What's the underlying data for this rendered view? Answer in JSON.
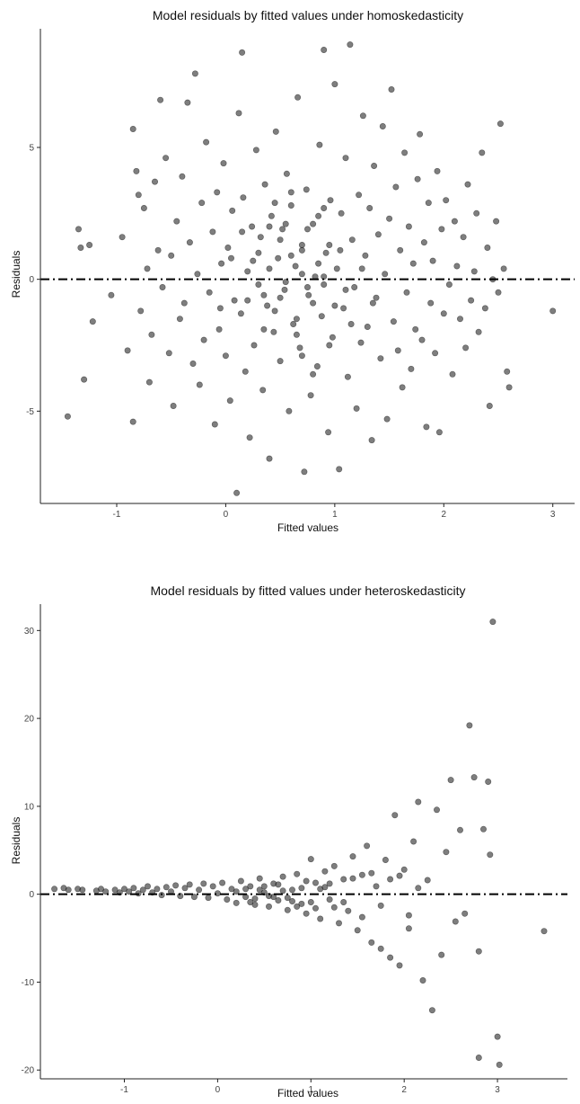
{
  "chart_data": [
    {
      "type": "scatter",
      "title": "Model residuals by fitted values under homoskedasticity",
      "xlabel": "Fitted values",
      "ylabel": "Residuals",
      "xlim": [
        -1.7,
        3.2
      ],
      "ylim": [
        -8.5,
        9.5
      ],
      "xticks": [
        -1,
        0,
        1,
        2,
        3
      ],
      "yticks": [
        -5,
        0,
        5
      ],
      "grid": false,
      "reference_line": {
        "y": 0,
        "style": "dot-dash"
      },
      "points": [
        [
          -1.45,
          -5.2
        ],
        [
          -1.35,
          1.9
        ],
        [
          -1.33,
          1.2
        ],
        [
          -1.3,
          -3.8
        ],
        [
          -1.22,
          -1.6
        ],
        [
          -1.25,
          1.3
        ],
        [
          -1.05,
          -0.6
        ],
        [
          -0.95,
          1.6
        ],
        [
          -0.9,
          -2.7
        ],
        [
          -0.85,
          -5.4
        ],
        [
          -0.85,
          5.7
        ],
        [
          -0.82,
          4.1
        ],
        [
          -0.8,
          3.2
        ],
        [
          -0.78,
          -1.2
        ],
        [
          -0.75,
          2.7
        ],
        [
          -0.72,
          0.4
        ],
        [
          -0.7,
          -3.9
        ],
        [
          -0.68,
          -2.1
        ],
        [
          -0.65,
          3.7
        ],
        [
          -0.62,
          1.1
        ],
        [
          -0.6,
          6.8
        ],
        [
          -0.58,
          -0.3
        ],
        [
          -0.55,
          4.6
        ],
        [
          -0.52,
          -2.8
        ],
        [
          -0.5,
          0.9
        ],
        [
          -0.48,
          -4.8
        ],
        [
          -0.45,
          2.2
        ],
        [
          -0.42,
          -1.5
        ],
        [
          -0.4,
          3.9
        ],
        [
          -0.38,
          -0.9
        ],
        [
          -0.35,
          6.7
        ],
        [
          -0.33,
          1.4
        ],
        [
          -0.3,
          -3.2
        ],
        [
          -0.28,
          7.8
        ],
        [
          -0.26,
          0.2
        ],
        [
          -0.24,
          -4.0
        ],
        [
          -0.22,
          2.9
        ],
        [
          -0.2,
          -2.3
        ],
        [
          -0.18,
          5.2
        ],
        [
          -0.15,
          -0.5
        ],
        [
          -0.12,
          1.8
        ],
        [
          -0.1,
          -5.5
        ],
        [
          -0.08,
          3.3
        ],
        [
          -0.06,
          -1.9
        ],
        [
          -0.04,
          0.6
        ],
        [
          -0.02,
          4.4
        ],
        [
          0.0,
          -2.9
        ],
        [
          0.02,
          1.2
        ],
        [
          0.04,
          -4.6
        ],
        [
          0.06,
          2.6
        ],
        [
          0.08,
          -0.8
        ],
        [
          0.1,
          -8.1
        ],
        [
          0.12,
          6.3
        ],
        [
          0.14,
          -1.3
        ],
        [
          0.15,
          8.6
        ],
        [
          0.16,
          3.1
        ],
        [
          0.18,
          -3.5
        ],
        [
          0.2,
          0.3
        ],
        [
          0.22,
          -6.0
        ],
        [
          0.24,
          2.0
        ],
        [
          0.26,
          -2.5
        ],
        [
          0.28,
          4.9
        ],
        [
          0.3,
          -0.2
        ],
        [
          0.32,
          1.6
        ],
        [
          0.34,
          -4.2
        ],
        [
          0.36,
          3.6
        ],
        [
          0.38,
          -1.0
        ],
        [
          0.4,
          -6.8
        ],
        [
          0.42,
          2.4
        ],
        [
          0.44,
          -2.0
        ],
        [
          0.46,
          5.6
        ],
        [
          0.48,
          0.8
        ],
        [
          0.5,
          -3.1
        ],
        [
          0.52,
          1.9
        ],
        [
          0.54,
          -0.4
        ],
        [
          0.56,
          4.0
        ],
        [
          0.58,
          -5.0
        ],
        [
          0.6,
          2.8
        ],
        [
          0.62,
          -1.7
        ],
        [
          0.64,
          0.5
        ],
        [
          0.66,
          6.9
        ],
        [
          0.68,
          -2.6
        ],
        [
          0.7,
          1.3
        ],
        [
          0.72,
          -7.3
        ],
        [
          0.74,
          3.4
        ],
        [
          0.76,
          -0.6
        ],
        [
          0.78,
          -4.4
        ],
        [
          0.8,
          2.1
        ],
        [
          0.82,
          0.1
        ],
        [
          0.84,
          -3.3
        ],
        [
          0.86,
          5.1
        ],
        [
          0.88,
          -1.4
        ],
        [
          0.9,
          8.7
        ],
        [
          0.92,
          1.0
        ],
        [
          0.94,
          -5.8
        ],
        [
          0.96,
          3.0
        ],
        [
          0.98,
          -2.2
        ],
        [
          1.0,
          7.4
        ],
        [
          1.02,
          0.4
        ],
        [
          1.04,
          -7.2
        ],
        [
          1.06,
          2.5
        ],
        [
          1.08,
          -1.1
        ],
        [
          1.1,
          4.6
        ],
        [
          1.12,
          -3.7
        ],
        [
          1.14,
          8.9
        ],
        [
          1.16,
          1.5
        ],
        [
          1.18,
          -0.3
        ],
        [
          1.2,
          -4.9
        ],
        [
          1.22,
          3.2
        ],
        [
          1.24,
          -2.4
        ],
        [
          1.26,
          6.2
        ],
        [
          1.28,
          0.9
        ],
        [
          1.3,
          -1.8
        ],
        [
          1.32,
          2.7
        ],
        [
          1.34,
          -6.1
        ],
        [
          1.36,
          4.3
        ],
        [
          1.38,
          -0.7
        ],
        [
          1.4,
          1.7
        ],
        [
          1.42,
          -3.0
        ],
        [
          1.44,
          5.8
        ],
        [
          1.46,
          0.2
        ],
        [
          1.48,
          -5.3
        ],
        [
          1.5,
          2.3
        ],
        [
          1.52,
          7.2
        ],
        [
          1.54,
          -1.6
        ],
        [
          1.56,
          3.5
        ],
        [
          1.58,
          -2.7
        ],
        [
          1.6,
          1.1
        ],
        [
          1.62,
          -4.1
        ],
        [
          1.64,
          4.8
        ],
        [
          1.66,
          -0.5
        ],
        [
          1.68,
          2.0
        ],
        [
          1.7,
          -3.4
        ],
        [
          1.72,
          0.6
        ],
        [
          1.74,
          -1.9
        ],
        [
          1.76,
          3.8
        ],
        [
          1.78,
          5.5
        ],
        [
          1.8,
          -2.3
        ],
        [
          1.82,
          1.4
        ],
        [
          1.84,
          -5.6
        ],
        [
          1.86,
          2.9
        ],
        [
          1.88,
          -0.9
        ],
        [
          1.9,
          0.7
        ],
        [
          1.92,
          -2.8
        ],
        [
          1.94,
          4.1
        ],
        [
          1.96,
          -5.8
        ],
        [
          1.98,
          1.9
        ],
        [
          2.0,
          -1.3
        ],
        [
          2.02,
          3.0
        ],
        [
          2.05,
          -0.2
        ],
        [
          2.08,
          -3.6
        ],
        [
          2.1,
          2.2
        ],
        [
          2.12,
          0.5
        ],
        [
          2.15,
          -1.5
        ],
        [
          2.18,
          1.6
        ],
        [
          2.2,
          -2.6
        ],
        [
          2.22,
          3.6
        ],
        [
          2.25,
          -0.8
        ],
        [
          2.28,
          0.3
        ],
        [
          2.3,
          2.5
        ],
        [
          2.32,
          -2.0
        ],
        [
          2.35,
          4.8
        ],
        [
          2.38,
          -1.1
        ],
        [
          2.4,
          1.2
        ],
        [
          2.42,
          -4.8
        ],
        [
          2.45,
          0.0
        ],
        [
          2.48,
          2.2
        ],
        [
          2.5,
          -0.5
        ],
        [
          2.52,
          5.9
        ],
        [
          2.55,
          0.4
        ],
        [
          2.58,
          -3.5
        ],
        [
          2.6,
          -4.1
        ],
        [
          3.0,
          -1.2
        ],
        [
          0.3,
          1.0
        ],
        [
          0.35,
          -0.6
        ],
        [
          0.4,
          0.4
        ],
        [
          0.45,
          -1.2
        ],
        [
          0.5,
          1.5
        ],
        [
          0.55,
          -0.1
        ],
        [
          0.6,
          0.9
        ],
        [
          0.65,
          -1.5
        ],
        [
          0.7,
          0.2
        ],
        [
          0.75,
          1.9
        ],
        [
          0.8,
          -0.9
        ],
        [
          0.85,
          0.6
        ],
        [
          0.9,
          -0.2
        ],
        [
          0.95,
          1.3
        ],
        [
          1.0,
          -1.0
        ],
        [
          0.2,
          -0.8
        ],
        [
          0.25,
          0.7
        ],
        [
          0.55,
          2.1
        ],
        [
          0.65,
          -2.1
        ],
        [
          0.75,
          -0.3
        ],
        [
          0.85,
          2.4
        ],
        [
          0.95,
          -2.5
        ],
        [
          1.05,
          1.1
        ],
        [
          1.1,
          -0.4
        ],
        [
          0.15,
          1.8
        ],
        [
          0.45,
          2.9
        ],
        [
          0.7,
          -2.9
        ],
        [
          0.9,
          2.7
        ],
        [
          1.15,
          -1.7
        ],
        [
          0.35,
          -1.9
        ],
        [
          0.05,
          0.8
        ],
        [
          -0.05,
          -1.1
        ],
        [
          1.25,
          0.4
        ],
        [
          1.35,
          -0.9
        ],
        [
          0.6,
          3.3
        ],
        [
          0.8,
          -3.6
        ],
        [
          0.5,
          -0.7
        ],
        [
          0.7,
          1.1
        ],
        [
          0.9,
          0.1
        ],
        [
          0.4,
          2.0
        ]
      ]
    },
    {
      "type": "scatter",
      "title": "Model residuals by fitted values under heteroskedasticity",
      "xlabel": "Fitted values",
      "ylabel": "Residuals",
      "xlim": [
        -1.9,
        3.75
      ],
      "ylim": [
        -21,
        33
      ],
      "xticks": [
        -1,
        0,
        1,
        2,
        3
      ],
      "yticks": [
        -20,
        -10,
        0,
        10,
        20,
        30
      ],
      "grid": false,
      "reference_line": {
        "y": 0,
        "style": "dot-dash"
      },
      "points": [
        [
          -1.75,
          0.6
        ],
        [
          -1.65,
          0.7
        ],
        [
          -1.6,
          0.5
        ],
        [
          -1.5,
          0.6
        ],
        [
          -1.45,
          0.5
        ],
        [
          -1.3,
          0.4
        ],
        [
          -1.25,
          0.6
        ],
        [
          -1.2,
          0.3
        ],
        [
          -1.1,
          0.5
        ],
        [
          -1.05,
          0.2
        ],
        [
          -1.0,
          0.6
        ],
        [
          -0.95,
          0.3
        ],
        [
          -0.9,
          0.7
        ],
        [
          -0.85,
          0.1
        ],
        [
          -0.8,
          0.5
        ],
        [
          -0.75,
          0.9
        ],
        [
          -0.7,
          0.2
        ],
        [
          -0.65,
          0.6
        ],
        [
          -0.6,
          -0.1
        ],
        [
          -0.55,
          0.8
        ],
        [
          -0.5,
          0.3
        ],
        [
          -0.45,
          1.0
        ],
        [
          -0.4,
          -0.2
        ],
        [
          -0.35,
          0.7
        ],
        [
          -0.3,
          1.1
        ],
        [
          -0.25,
          -0.3
        ],
        [
          -0.2,
          0.5
        ],
        [
          -0.15,
          1.2
        ],
        [
          -0.1,
          -0.4
        ],
        [
          -0.05,
          0.9
        ],
        [
          0.0,
          0.1
        ],
        [
          0.05,
          1.3
        ],
        [
          0.1,
          -0.6
        ],
        [
          0.15,
          0.6
        ],
        [
          0.2,
          -1.0
        ],
        [
          0.25,
          1.5
        ],
        [
          0.3,
          -0.3
        ],
        [
          0.35,
          0.9
        ],
        [
          0.4,
          -1.2
        ],
        [
          0.45,
          1.8
        ],
        [
          0.5,
          0.2
        ],
        [
          0.55,
          -1.4
        ],
        [
          0.6,
          1.2
        ],
        [
          0.65,
          -0.7
        ],
        [
          0.7,
          2.0
        ],
        [
          0.75,
          -1.8
        ],
        [
          0.8,
          0.5
        ],
        [
          0.85,
          2.3
        ],
        [
          0.9,
          -1.1
        ],
        [
          0.95,
          -2.2
        ],
        [
          1.0,
          4.0
        ],
        [
          1.05,
          1.3
        ],
        [
          1.1,
          -2.8
        ],
        [
          1.15,
          2.6
        ],
        [
          1.2,
          -0.6
        ],
        [
          1.25,
          3.2
        ],
        [
          1.3,
          -3.3
        ],
        [
          1.35,
          1.7
        ],
        [
          1.4,
          -1.9
        ],
        [
          1.45,
          4.3
        ],
        [
          1.5,
          -4.1
        ],
        [
          1.55,
          2.2
        ],
        [
          1.6,
          5.5
        ],
        [
          1.65,
          -5.5
        ],
        [
          1.7,
          0.9
        ],
        [
          1.75,
          -6.2
        ],
        [
          1.8,
          3.9
        ],
        [
          1.85,
          -7.2
        ],
        [
          1.9,
          9.0
        ],
        [
          1.95,
          -8.1
        ],
        [
          2.0,
          2.8
        ],
        [
          2.05,
          -3.9
        ],
        [
          2.1,
          6.0
        ],
        [
          2.15,
          10.5
        ],
        [
          2.2,
          -9.8
        ],
        [
          2.25,
          1.6
        ],
        [
          2.3,
          -13.2
        ],
        [
          2.35,
          9.6
        ],
        [
          2.4,
          -6.9
        ],
        [
          2.45,
          4.8
        ],
        [
          2.5,
          13.0
        ],
        [
          2.55,
          -3.1
        ],
        [
          2.6,
          7.3
        ],
        [
          2.65,
          -2.2
        ],
        [
          2.7,
          19.2
        ],
        [
          2.75,
          13.3
        ],
        [
          2.8,
          -6.5
        ],
        [
          2.85,
          7.4
        ],
        [
          2.8,
          -18.6
        ],
        [
          2.9,
          12.8
        ],
        [
          2.92,
          4.5
        ],
        [
          2.95,
          31.0
        ],
        [
          3.0,
          -16.2
        ],
        [
          3.02,
          -19.4
        ],
        [
          3.5,
          -4.2
        ],
        [
          0.3,
          0.6
        ],
        [
          0.4,
          -0.5
        ],
        [
          0.5,
          0.9
        ],
        [
          0.6,
          -0.3
        ],
        [
          0.7,
          0.4
        ],
        [
          0.8,
          -0.8
        ],
        [
          0.9,
          0.7
        ],
        [
          1.0,
          -0.9
        ],
        [
          1.1,
          0.6
        ],
        [
          1.2,
          1.2
        ],
        [
          0.2,
          0.3
        ],
        [
          0.35,
          -0.9
        ],
        [
          0.45,
          0.5
        ],
        [
          0.55,
          -0.2
        ],
        [
          0.65,
          1.1
        ],
        [
          0.75,
          -0.4
        ],
        [
          0.85,
          -1.4
        ],
        [
          0.95,
          1.5
        ],
        [
          1.05,
          -1.6
        ],
        [
          1.15,
          0.8
        ],
        [
          1.25,
          -1.5
        ],
        [
          1.35,
          -0.9
        ],
        [
          1.45,
          1.8
        ],
        [
          1.55,
          -2.6
        ],
        [
          1.65,
          2.4
        ],
        [
          1.75,
          -1.3
        ],
        [
          1.85,
          1.7
        ],
        [
          1.95,
          2.1
        ],
        [
          2.05,
          -2.4
        ],
        [
          2.15,
          0.7
        ]
      ]
    }
  ]
}
